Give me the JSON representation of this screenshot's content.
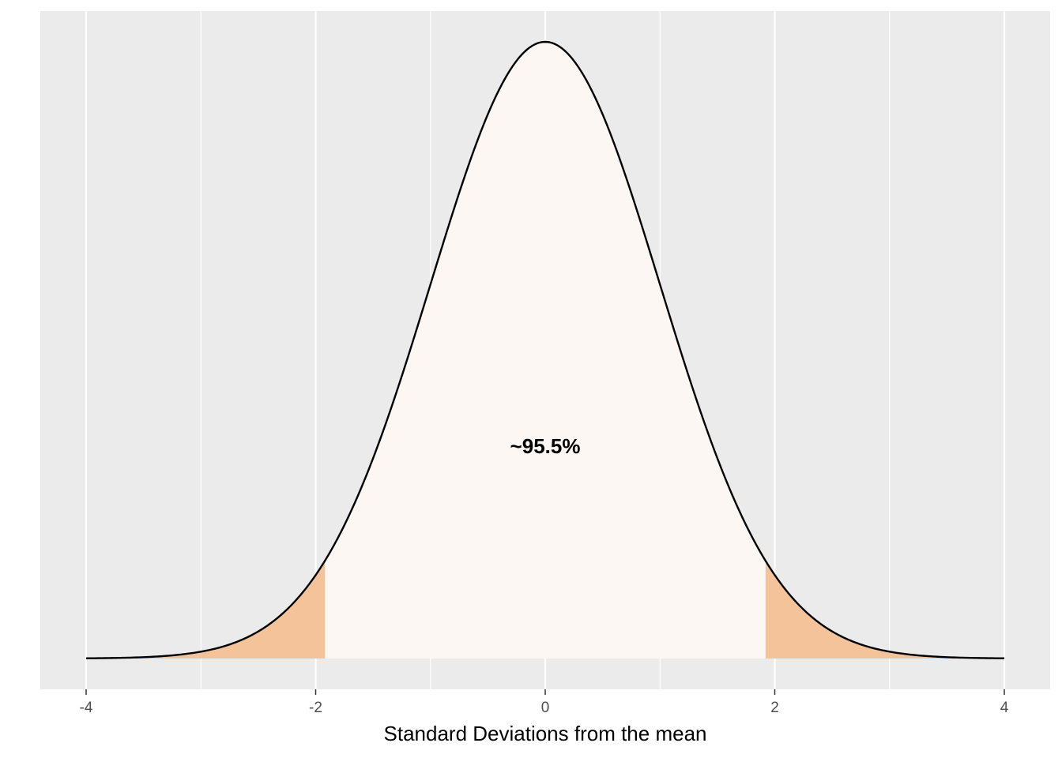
{
  "chart_data": {
    "type": "area",
    "distribution": "standard normal density",
    "xlabel": "Standard Deviations from the mean",
    "ylabel": "",
    "xlim": [
      -4,
      4
    ],
    "x_ticks": [
      -4,
      -2,
      0,
      2,
      4
    ],
    "x_minor_ticks": [
      -3,
      -1,
      1,
      3
    ],
    "grid": true,
    "y_axis_shown": false,
    "series": [
      {
        "role": "density-curve",
        "mean": 0,
        "sd": 1,
        "x_range": [
          -4,
          4
        ]
      },
      {
        "role": "central-region",
        "x_range": [
          -1.92,
          1.92
        ],
        "fill": "#fcf7f3"
      },
      {
        "role": "left-tail",
        "x_range": [
          -4,
          -1.92
        ],
        "fill": "#f4c39a"
      },
      {
        "role": "right-tail",
        "x_range": [
          1.92,
          4
        ],
        "fill": "#f4c39a"
      }
    ],
    "annotations": [
      {
        "text": "~95.5%",
        "x": 0,
        "y": 0.1375
      }
    ]
  },
  "colors": {
    "panel_background": "#ebebeb",
    "grid": "#ffffff",
    "central_fill": "#fcf7f3",
    "tail_fill": "#f4c39a",
    "curve": "#000000"
  }
}
